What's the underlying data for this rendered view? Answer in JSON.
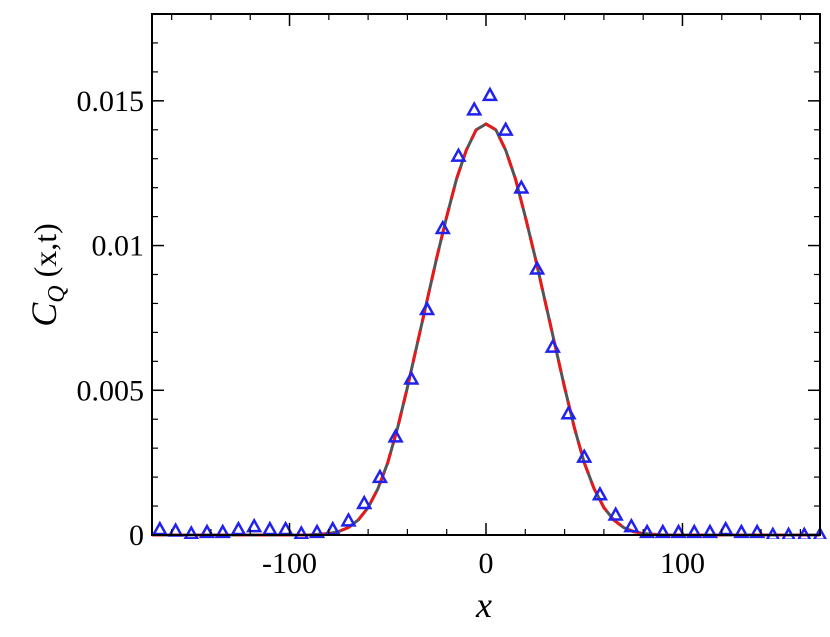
{
  "chart_data": {
    "type": "line",
    "title": "",
    "xlabel": "x",
    "ylabel_main": "C",
    "ylabel_sub": "Q",
    "ylabel_args": "(x,t)",
    "xlim": [
      -170,
      170
    ],
    "ylim": [
      0,
      0.018
    ],
    "grid": false,
    "legend": "none",
    "x_ticks": [
      -100,
      0,
      100
    ],
    "x_tick_labels": [
      "-100",
      "0",
      "100"
    ],
    "y_ticks": [
      0,
      0.005,
      0.01,
      0.015
    ],
    "y_tick_labels": [
      "0",
      "0.005",
      "0.01",
      "0.015"
    ],
    "series": [
      {
        "style": "line",
        "color": "#555555",
        "x": [
          -170,
          -160,
          -150,
          -140,
          -130,
          -120,
          -110,
          -100,
          -90,
          -80,
          -75,
          -70,
          -65,
          -60,
          -55,
          -50,
          -45,
          -40,
          -35,
          -30,
          -25,
          -20,
          -15,
          -10,
          -5,
          0,
          5,
          10,
          15,
          20,
          25,
          30,
          35,
          40,
          45,
          50,
          55,
          60,
          65,
          70,
          75,
          80,
          90,
          100,
          110,
          120,
          130,
          140,
          150,
          160,
          170
        ],
        "y": [
          0,
          0,
          0,
          0,
          0,
          0,
          0,
          0,
          0,
          5e-05,
          0.00012,
          0.00026,
          0.00052,
          0.00095,
          0.0016,
          0.0025,
          0.0037,
          0.0051,
          0.0066,
          0.0081,
          0.0096,
          0.011,
          0.0123,
          0.0133,
          0.014,
          0.0142,
          0.014,
          0.0133,
          0.0123,
          0.011,
          0.0096,
          0.0081,
          0.0066,
          0.0051,
          0.0037,
          0.0025,
          0.0016,
          0.00095,
          0.00052,
          0.00026,
          0.00012,
          5e-05,
          0,
          0,
          0,
          0,
          0,
          0,
          0,
          0,
          0
        ]
      },
      {
        "style": "dashed",
        "color": "#e8191a",
        "x": [
          -170,
          -160,
          -150,
          -140,
          -130,
          -120,
          -110,
          -100,
          -90,
          -80,
          -75,
          -70,
          -65,
          -60,
          -55,
          -50,
          -45,
          -40,
          -35,
          -30,
          -25,
          -20,
          -15,
          -10,
          -5,
          0,
          5,
          10,
          15,
          20,
          25,
          30,
          35,
          40,
          45,
          50,
          55,
          60,
          65,
          70,
          75,
          80,
          90,
          100,
          110,
          120,
          130,
          140,
          150,
          160,
          170
        ],
        "y": [
          0,
          0,
          0,
          0,
          0,
          0,
          0,
          0,
          0,
          5e-05,
          0.00012,
          0.00026,
          0.00052,
          0.00095,
          0.0016,
          0.0025,
          0.0037,
          0.0051,
          0.0066,
          0.0081,
          0.0096,
          0.011,
          0.0123,
          0.0133,
          0.014,
          0.0142,
          0.014,
          0.0133,
          0.0123,
          0.011,
          0.0096,
          0.0081,
          0.0066,
          0.0051,
          0.0037,
          0.0025,
          0.0016,
          0.00095,
          0.00052,
          0.00026,
          0.00012,
          5e-05,
          0,
          0,
          0,
          0,
          0,
          0,
          0,
          0,
          0
        ]
      },
      {
        "style": "triangles",
        "color": "#2222ee",
        "x": [
          -166,
          -158,
          -150,
          -142,
          -134,
          -126,
          -118,
          -110,
          -102,
          -94,
          -86,
          -78,
          -70,
          -62,
          -54,
          -46,
          -38,
          -30,
          -22,
          -14,
          -6,
          2,
          10,
          18,
          26,
          34,
          42,
          50,
          58,
          66,
          74,
          82,
          90,
          98,
          106,
          114,
          122,
          130,
          138,
          146,
          154,
          162,
          170
        ],
        "y": [
          0.0002,
          0.00015,
          5e-05,
          0.0001,
          0.0001,
          0.0002,
          0.0003,
          0.0002,
          0.0002,
          5e-05,
          0.0001,
          0.0002,
          0.0005,
          0.0011,
          0.002,
          0.0034,
          0.0054,
          0.0078,
          0.0106,
          0.0131,
          0.0147,
          0.0152,
          0.014,
          0.012,
          0.0092,
          0.0065,
          0.0042,
          0.0027,
          0.0014,
          0.0007,
          0.0003,
          0.0001,
          0.0001,
          0.0001,
          0.0001,
          0.0001,
          0.0002,
          0.0001,
          0.0001,
          0,
          0,
          0,
          0
        ]
      }
    ]
  }
}
